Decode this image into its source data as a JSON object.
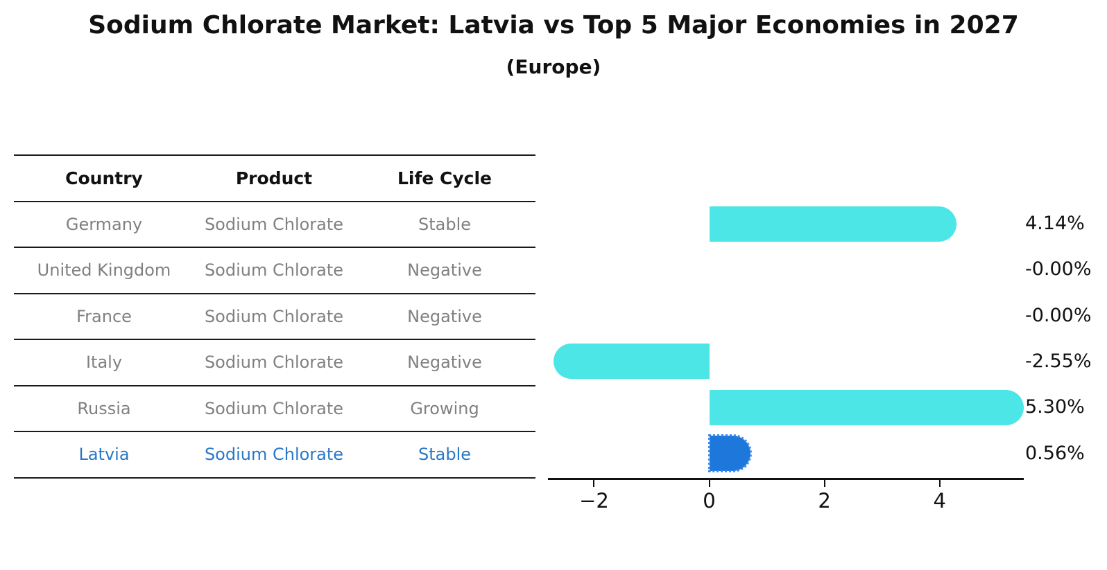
{
  "title": "Sodium Chlorate Market: Latvia vs Top 5 Major Economies in 2027",
  "subtitle": "(Europe)",
  "table": {
    "headers": [
      "Country",
      "Product",
      "Life Cycle"
    ],
    "rows": [
      {
        "country": "Germany",
        "product": "Sodium Chlorate",
        "life_cycle": "Stable",
        "highlight": false
      },
      {
        "country": "United Kingdom",
        "product": "Sodium Chlorate",
        "life_cycle": "Negative",
        "highlight": false
      },
      {
        "country": "France",
        "product": "Sodium Chlorate",
        "life_cycle": "Negative",
        "highlight": false
      },
      {
        "country": "Italy",
        "product": "Sodium Chlorate",
        "life_cycle": "Negative",
        "highlight": false
      },
      {
        "country": "Russia",
        "product": "Sodium Chlorate",
        "life_cycle": "Growing",
        "highlight": false
      },
      {
        "country": "Latvia",
        "product": "Sodium Chlorate",
        "life_cycle": "Stable",
        "highlight": true
      }
    ]
  },
  "chart_data": {
    "type": "bar",
    "orientation": "horizontal",
    "title": "Sodium Chlorate Market: Latvia vs Top 5 Major Economies in 2027 (Europe)",
    "categories": [
      "Germany",
      "United Kingdom",
      "France",
      "Italy",
      "Russia",
      "Latvia"
    ],
    "values": [
      4.14,
      -0.0,
      -0.0,
      -2.55,
      5.3,
      0.56
    ],
    "value_labels": [
      "4.14%",
      "-0.00%",
      "-0.00%",
      "-2.55%",
      "5.30%",
      "0.56%"
    ],
    "unit": "percent",
    "xlabel": "",
    "ylabel": "",
    "xlim": [
      -2.8,
      5.46
    ],
    "x_tick_values": [
      -2,
      0,
      2,
      4
    ],
    "x_tick_labels": [
      "−2",
      "0",
      "2",
      "4"
    ],
    "grid": false,
    "legend": "none",
    "highlight_index": 5,
    "bar_color": "#4de6e6",
    "highlight_bar_color": "#1e78dc",
    "highlight_text_color": "#2878c8",
    "text_color": "#808080",
    "axis_color": "#111111"
  }
}
